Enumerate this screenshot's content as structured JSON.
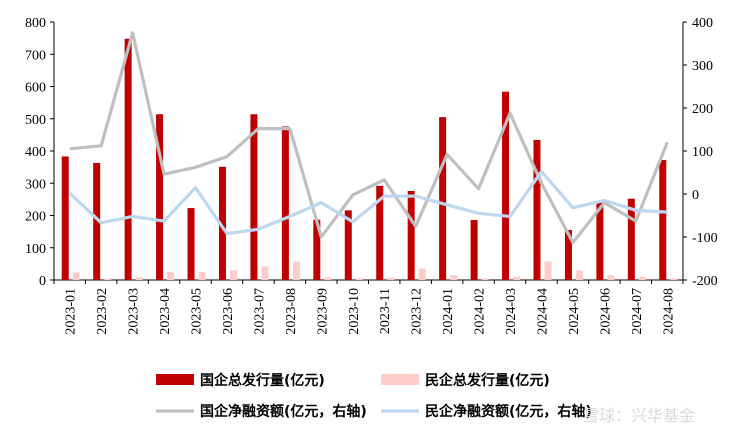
{
  "chart_data": {
    "type": "bar+line",
    "categories": [
      "2023-01",
      "2023-02",
      "2023-03",
      "2023-04",
      "2023-05",
      "2023-06",
      "2023-07",
      "2023-08",
      "2023-09",
      "2023-10",
      "2023-11",
      "2023-12",
      "2024-01",
      "2024-02",
      "2024-03",
      "2024-04",
      "2024-05",
      "2024-06",
      "2024-07",
      "2024-08"
    ],
    "left_axis": {
      "ylim": [
        0,
        800
      ],
      "ticks": [
        0,
        100,
        200,
        300,
        400,
        500,
        600,
        700,
        800
      ]
    },
    "right_axis": {
      "ylim": [
        -200,
        400
      ],
      "ticks": [
        -200,
        -100,
        0,
        100,
        200,
        300,
        400
      ]
    },
    "series": [
      {
        "name": "国企总发行量(亿元)",
        "kind": "bar",
        "axis": "left",
        "color": "#c00000",
        "values": [
          383,
          363,
          748,
          514,
          223,
          351,
          514,
          476,
          187,
          216,
          292,
          276,
          505,
          186,
          584,
          434,
          155,
          241,
          252,
          372
        ]
      },
      {
        "name": "民企总发行量(亿元)",
        "kind": "bar",
        "axis": "left",
        "color": "#ffcccc",
        "values": [
          23,
          5,
          8,
          25,
          25,
          30,
          42,
          57,
          8,
          5,
          8,
          35,
          15,
          5,
          10,
          58,
          30,
          15,
          10,
          5
        ]
      },
      {
        "name": "国企净融资额(亿元，右轴)",
        "kind": "line",
        "axis": "right",
        "color": "#bfbfbf",
        "values": [
          105,
          112,
          375,
          46,
          62,
          87,
          152,
          152,
          -100,
          -2,
          33,
          -75,
          92,
          12,
          188,
          25,
          -113,
          -20,
          -63,
          120
        ]
      },
      {
        "name": "民企净融资额(亿元，右轴)",
        "kind": "line",
        "axis": "right",
        "color": "#bdd7ee",
        "values": [
          2,
          -67,
          -52,
          -63,
          15,
          -92,
          -82,
          -52,
          -20,
          -65,
          -5,
          -5,
          -25,
          -45,
          -52,
          52,
          -32,
          -15,
          -38,
          -42
        ]
      }
    ],
    "grid": false,
    "legend_position": "bottom"
  },
  "watermark": "雪球：兴华基金"
}
